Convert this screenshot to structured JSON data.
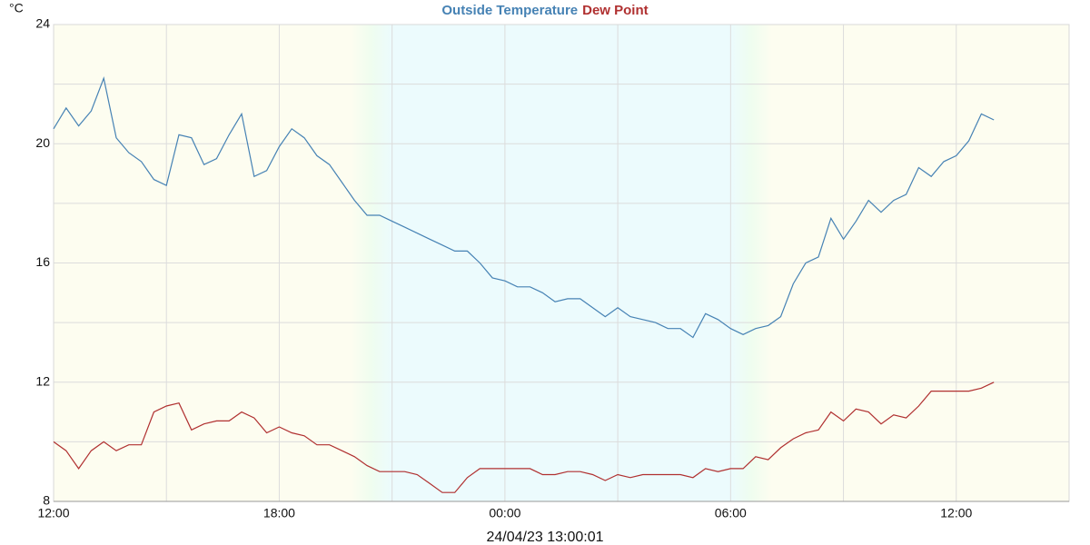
{
  "chart_data": {
    "type": "line",
    "y_label": "°C",
    "footer": "24/04/23 13:00:01",
    "x": [
      0,
      20,
      40,
      60,
      80,
      100,
      120,
      140,
      160,
      180,
      200,
      220,
      240,
      260,
      280,
      300,
      320,
      340,
      360,
      380,
      400,
      420,
      440,
      460,
      480,
      500,
      520,
      540,
      560,
      580,
      600,
      620,
      640,
      660,
      680,
      700,
      720,
      740,
      760,
      780,
      800,
      820,
      840,
      860,
      880,
      900,
      920,
      940,
      960,
      980,
      1000,
      1020,
      1040,
      1060,
      1080,
      1100,
      1120,
      1140,
      1160,
      1180,
      1200,
      1220,
      1240,
      1260,
      1280,
      1300,
      1320,
      1340,
      1360,
      1380,
      1400,
      1420,
      1440,
      1460,
      1480,
      1500
    ],
    "xlim": [
      0,
      1620
    ],
    "xticks": [
      {
        "value": 0,
        "label": "12:00"
      },
      {
        "value": 360,
        "label": "18:00"
      },
      {
        "value": 720,
        "label": "00:00"
      },
      {
        "value": 1080,
        "label": "06:00"
      },
      {
        "value": 1440,
        "label": "12:00"
      }
    ],
    "xminor": [
      180,
      540,
      900,
      1260,
      1620
    ],
    "ylim": [
      8,
      24
    ],
    "yticks": [
      8,
      12,
      16,
      20,
      24
    ],
    "yminor": [
      10,
      14,
      18,
      22
    ],
    "grid": true,
    "twilight": [
      [
        474,
        540
      ],
      [
        1080,
        1146
      ]
    ],
    "series": [
      {
        "name": "Outside Temperature",
        "color": "#4682b4",
        "values": [
          20.5,
          21.2,
          20.6,
          21.1,
          22.2,
          20.2,
          19.7,
          19.4,
          18.8,
          18.6,
          20.3,
          20.2,
          19.3,
          19.5,
          20.3,
          21.0,
          18.9,
          19.1,
          19.9,
          20.5,
          20.2,
          19.6,
          19.3,
          18.7,
          18.1,
          17.6,
          17.6,
          17.4,
          17.2,
          17.0,
          16.8,
          16.6,
          16.4,
          16.4,
          16.0,
          15.5,
          15.4,
          15.2,
          15.2,
          15.0,
          14.7,
          14.8,
          14.8,
          14.5,
          14.2,
          14.5,
          14.2,
          14.1,
          14.0,
          13.8,
          13.8,
          13.5,
          14.3,
          14.1,
          13.8,
          13.6,
          13.8,
          13.9,
          14.2,
          15.3,
          16.0,
          16.2,
          17.5,
          16.8,
          17.4,
          18.1,
          17.7,
          18.1,
          18.3,
          19.2,
          18.9,
          19.4,
          19.6,
          20.1,
          21.0,
          20.8
        ]
      },
      {
        "name": "Dew Point",
        "color": "#b03030",
        "values": [
          10.0,
          9.7,
          9.1,
          9.7,
          10.0,
          9.7,
          9.9,
          9.9,
          11.0,
          11.2,
          11.3,
          10.4,
          10.6,
          10.7,
          10.7,
          11.0,
          10.8,
          10.3,
          10.5,
          10.3,
          10.2,
          9.9,
          9.9,
          9.7,
          9.5,
          9.2,
          9.0,
          9.0,
          9.0,
          8.9,
          8.6,
          8.3,
          8.3,
          8.8,
          9.1,
          9.1,
          9.1,
          9.1,
          9.1,
          8.9,
          8.9,
          9.0,
          9.0,
          8.9,
          8.7,
          8.9,
          8.8,
          8.9,
          8.9,
          8.9,
          8.9,
          8.8,
          9.1,
          9.0,
          9.1,
          9.1,
          9.5,
          9.4,
          9.8,
          10.1,
          10.3,
          10.4,
          11.0,
          10.7,
          11.1,
          11.0,
          10.6,
          10.9,
          10.8,
          11.2,
          11.7,
          11.7,
          11.7,
          11.7,
          11.8,
          12.0
        ]
      }
    ]
  }
}
